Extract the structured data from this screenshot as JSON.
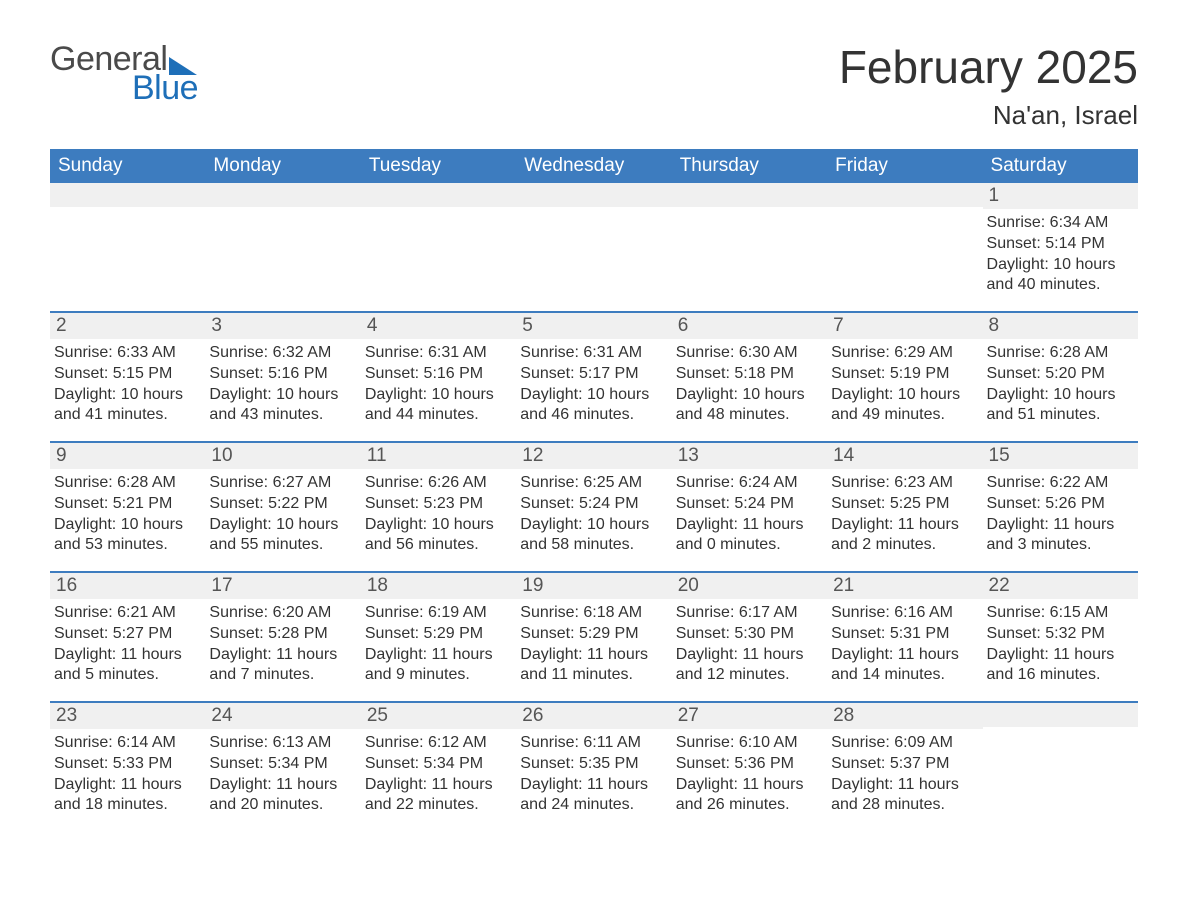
{
  "brand": {
    "word1": "General",
    "word2": "Blue",
    "color_primary": "#1e6fb8",
    "color_text": "#4a4a4a"
  },
  "title": "February 2025",
  "location": "Na'an, Israel",
  "header_bg": "#3d7cbf",
  "weekdays": [
    "Sunday",
    "Monday",
    "Tuesday",
    "Wednesday",
    "Thursday",
    "Friday",
    "Saturday"
  ],
  "labels": {
    "sunrise": "Sunrise:",
    "sunset": "Sunset:",
    "daylight": "Daylight:"
  },
  "weeks": [
    [
      {
        "blank": true
      },
      {
        "blank": true
      },
      {
        "blank": true
      },
      {
        "blank": true
      },
      {
        "blank": true
      },
      {
        "blank": true
      },
      {
        "day": "1",
        "sunrise": "6:34 AM",
        "sunset": "5:14 PM",
        "daylight": "10 hours and 40 minutes."
      }
    ],
    [
      {
        "day": "2",
        "sunrise": "6:33 AM",
        "sunset": "5:15 PM",
        "daylight": "10 hours and 41 minutes."
      },
      {
        "day": "3",
        "sunrise": "6:32 AM",
        "sunset": "5:16 PM",
        "daylight": "10 hours and 43 minutes."
      },
      {
        "day": "4",
        "sunrise": "6:31 AM",
        "sunset": "5:16 PM",
        "daylight": "10 hours and 44 minutes."
      },
      {
        "day": "5",
        "sunrise": "6:31 AM",
        "sunset": "5:17 PM",
        "daylight": "10 hours and 46 minutes."
      },
      {
        "day": "6",
        "sunrise": "6:30 AM",
        "sunset": "5:18 PM",
        "daylight": "10 hours and 48 minutes."
      },
      {
        "day": "7",
        "sunrise": "6:29 AM",
        "sunset": "5:19 PM",
        "daylight": "10 hours and 49 minutes."
      },
      {
        "day": "8",
        "sunrise": "6:28 AM",
        "sunset": "5:20 PM",
        "daylight": "10 hours and 51 minutes."
      }
    ],
    [
      {
        "day": "9",
        "sunrise": "6:28 AM",
        "sunset": "5:21 PM",
        "daylight": "10 hours and 53 minutes."
      },
      {
        "day": "10",
        "sunrise": "6:27 AM",
        "sunset": "5:22 PM",
        "daylight": "10 hours and 55 minutes."
      },
      {
        "day": "11",
        "sunrise": "6:26 AM",
        "sunset": "5:23 PM",
        "daylight": "10 hours and 56 minutes."
      },
      {
        "day": "12",
        "sunrise": "6:25 AM",
        "sunset": "5:24 PM",
        "daylight": "10 hours and 58 minutes."
      },
      {
        "day": "13",
        "sunrise": "6:24 AM",
        "sunset": "5:24 PM",
        "daylight": "11 hours and 0 minutes."
      },
      {
        "day": "14",
        "sunrise": "6:23 AM",
        "sunset": "5:25 PM",
        "daylight": "11 hours and 2 minutes."
      },
      {
        "day": "15",
        "sunrise": "6:22 AM",
        "sunset": "5:26 PM",
        "daylight": "11 hours and 3 minutes."
      }
    ],
    [
      {
        "day": "16",
        "sunrise": "6:21 AM",
        "sunset": "5:27 PM",
        "daylight": "11 hours and 5 minutes."
      },
      {
        "day": "17",
        "sunrise": "6:20 AM",
        "sunset": "5:28 PM",
        "daylight": "11 hours and 7 minutes."
      },
      {
        "day": "18",
        "sunrise": "6:19 AM",
        "sunset": "5:29 PM",
        "daylight": "11 hours and 9 minutes."
      },
      {
        "day": "19",
        "sunrise": "6:18 AM",
        "sunset": "5:29 PM",
        "daylight": "11 hours and 11 minutes."
      },
      {
        "day": "20",
        "sunrise": "6:17 AM",
        "sunset": "5:30 PM",
        "daylight": "11 hours and 12 minutes."
      },
      {
        "day": "21",
        "sunrise": "6:16 AM",
        "sunset": "5:31 PM",
        "daylight": "11 hours and 14 minutes."
      },
      {
        "day": "22",
        "sunrise": "6:15 AM",
        "sunset": "5:32 PM",
        "daylight": "11 hours and 16 minutes."
      }
    ],
    [
      {
        "day": "23",
        "sunrise": "6:14 AM",
        "sunset": "5:33 PM",
        "daylight": "11 hours and 18 minutes."
      },
      {
        "day": "24",
        "sunrise": "6:13 AM",
        "sunset": "5:34 PM",
        "daylight": "11 hours and 20 minutes."
      },
      {
        "day": "25",
        "sunrise": "6:12 AM",
        "sunset": "5:34 PM",
        "daylight": "11 hours and 22 minutes."
      },
      {
        "day": "26",
        "sunrise": "6:11 AM",
        "sunset": "5:35 PM",
        "daylight": "11 hours and 24 minutes."
      },
      {
        "day": "27",
        "sunrise": "6:10 AM",
        "sunset": "5:36 PM",
        "daylight": "11 hours and 26 minutes."
      },
      {
        "day": "28",
        "sunrise": "6:09 AM",
        "sunset": "5:37 PM",
        "daylight": "11 hours and 28 minutes."
      },
      {
        "blank": true
      }
    ]
  ]
}
